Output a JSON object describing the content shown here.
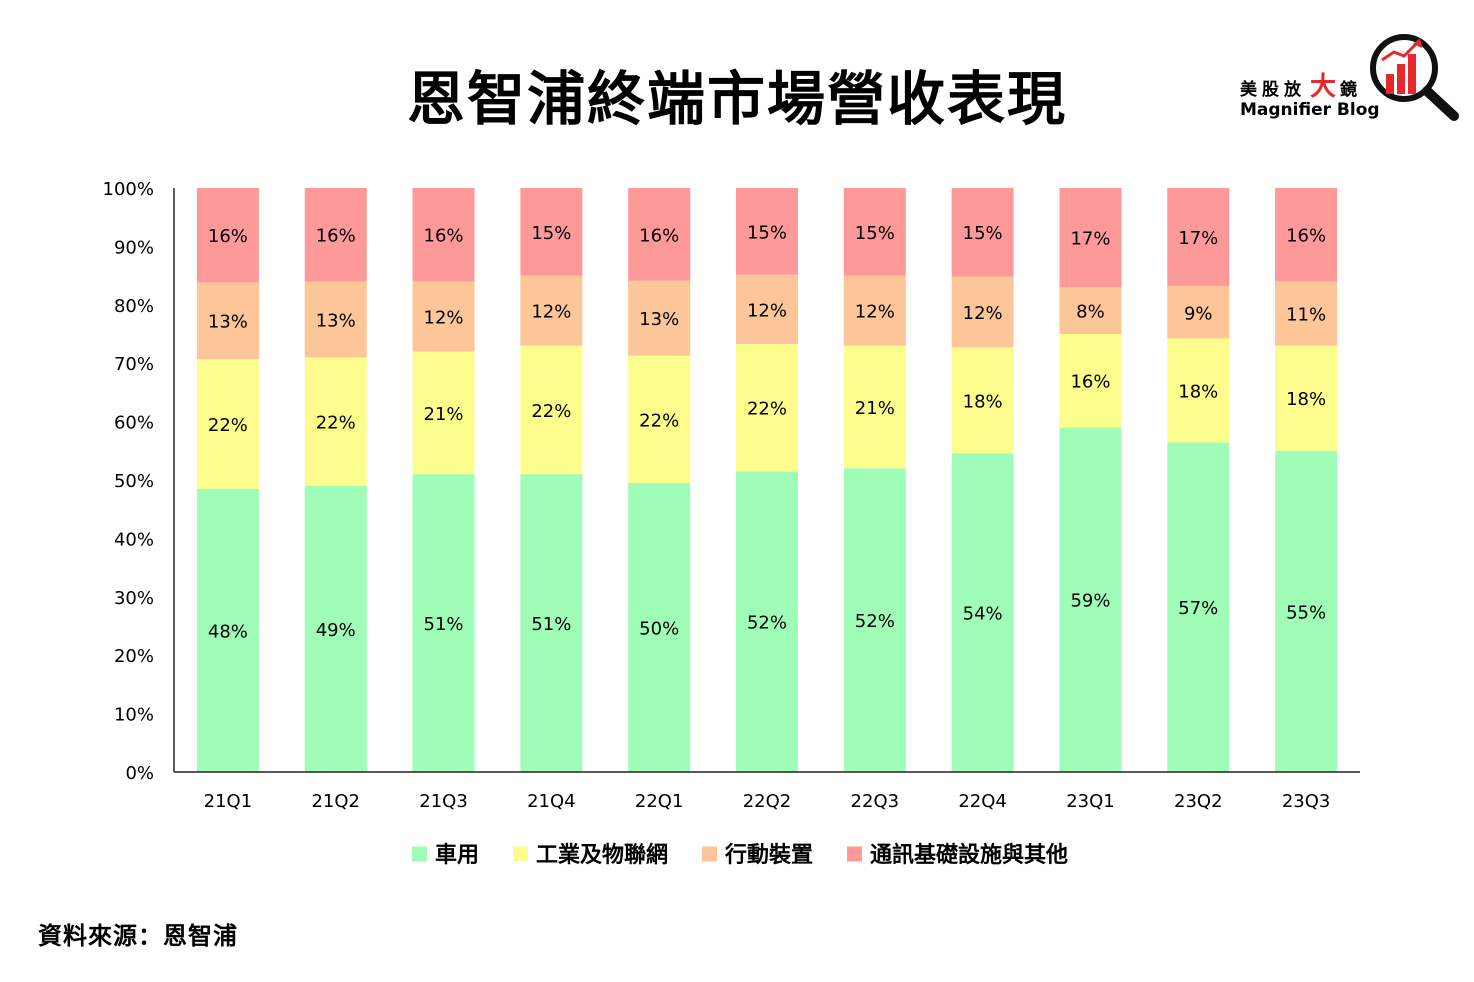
{
  "title": "恩智浦終端市場營收表現",
  "logo": {
    "cn_before": "美股放",
    "cn_big": "大",
    "cn_after": "鏡",
    "en": "Magnifier Blog",
    "icon": "magnifier-bar-chart-icon",
    "accent": "#e8282b"
  },
  "source": "資料來源：恩智浦",
  "chart_data": {
    "type": "bar",
    "stacked": true,
    "categories": [
      "21Q1",
      "21Q2",
      "21Q3",
      "21Q4",
      "22Q1",
      "22Q2",
      "22Q3",
      "22Q4",
      "23Q1",
      "23Q2",
      "23Q3"
    ],
    "series": [
      {
        "name": "車用",
        "color": "#9ffdb7",
        "values": [
          48,
          49,
          51,
          51,
          50,
          52,
          52,
          54,
          59,
          57,
          55
        ]
      },
      {
        "name": "工業及物聯網",
        "color": "#fcfd8c",
        "values": [
          22,
          22,
          21,
          22,
          22,
          22,
          21,
          18,
          16,
          18,
          18
        ]
      },
      {
        "name": "行動裝置",
        "color": "#fcc699",
        "values": [
          13,
          13,
          12,
          12,
          13,
          12,
          12,
          12,
          8,
          9,
          11
        ]
      },
      {
        "name": "通訊基礎設施與其他",
        "color": "#fd9a99",
        "values": [
          16,
          16,
          16,
          15,
          16,
          15,
          15,
          15,
          17,
          17,
          16
        ]
      }
    ],
    "ylim": [
      0,
      100
    ],
    "yticks": [
      "0%",
      "10%",
      "20%",
      "30%",
      "40%",
      "50%",
      "60%",
      "70%",
      "80%",
      "90%",
      "100%"
    ],
    "value_suffix": "%",
    "grid": false,
    "legend_position": "bottom"
  }
}
